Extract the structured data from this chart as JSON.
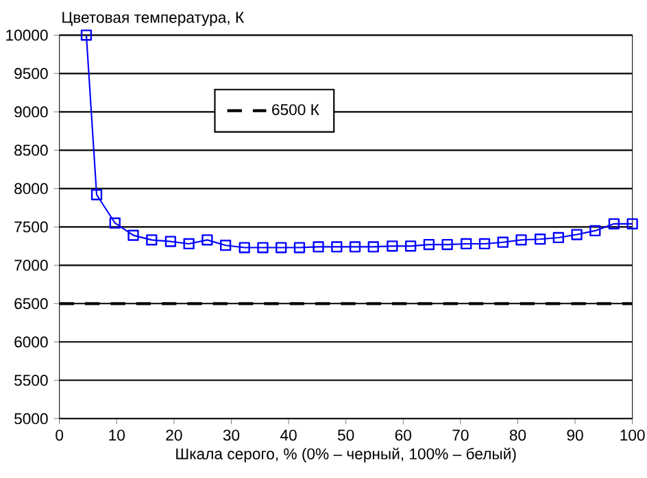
{
  "chart_data": {
    "type": "line",
    "ylabel": "Цветовая температура, К",
    "xlabel": "Шкала серого, % (0% – черный, 100% – белый)",
    "xlim": [
      0,
      100
    ],
    "xticks": [
      0,
      10,
      20,
      30,
      40,
      50,
      60,
      70,
      80,
      90,
      100
    ],
    "ylim": [
      5000,
      10000
    ],
    "yticks": [
      5000,
      5500,
      6000,
      6500,
      7000,
      7500,
      8000,
      8500,
      9000,
      9500,
      10000
    ],
    "grid": "y",
    "legend": "top left",
    "marker": "square",
    "line_style": "solid",
    "series": [
      {
        "color": "#0000ff",
        "x": [
          4.7,
          6.5,
          9.7,
          12.9,
          16.1,
          19.4,
          22.6,
          25.8,
          29,
          32.3,
          35.5,
          38.7,
          41.9,
          45.2,
          48.4,
          51.6,
          54.8,
          58.1,
          61.3,
          64.5,
          67.7,
          71,
          74.2,
          77.4,
          80.6,
          83.9,
          87.1,
          90.3,
          93.5,
          96.8,
          100
        ],
        "values": [
          10000,
          7920,
          7550,
          7390,
          7330,
          7310,
          7280,
          7330,
          7260,
          7230,
          7230,
          7230,
          7230,
          7240,
          7240,
          7240,
          7240,
          7250,
          7250,
          7270,
          7270,
          7280,
          7280,
          7300,
          7330,
          7340,
          7360,
          7400,
          7450,
          7540,
          7540
        ]
      }
    ],
    "ref_lines": [
      {
        "axis": "y",
        "value": 6500,
        "label": "6500 К",
        "color": "#000000",
        "line_style": "dashed"
      }
    ]
  }
}
